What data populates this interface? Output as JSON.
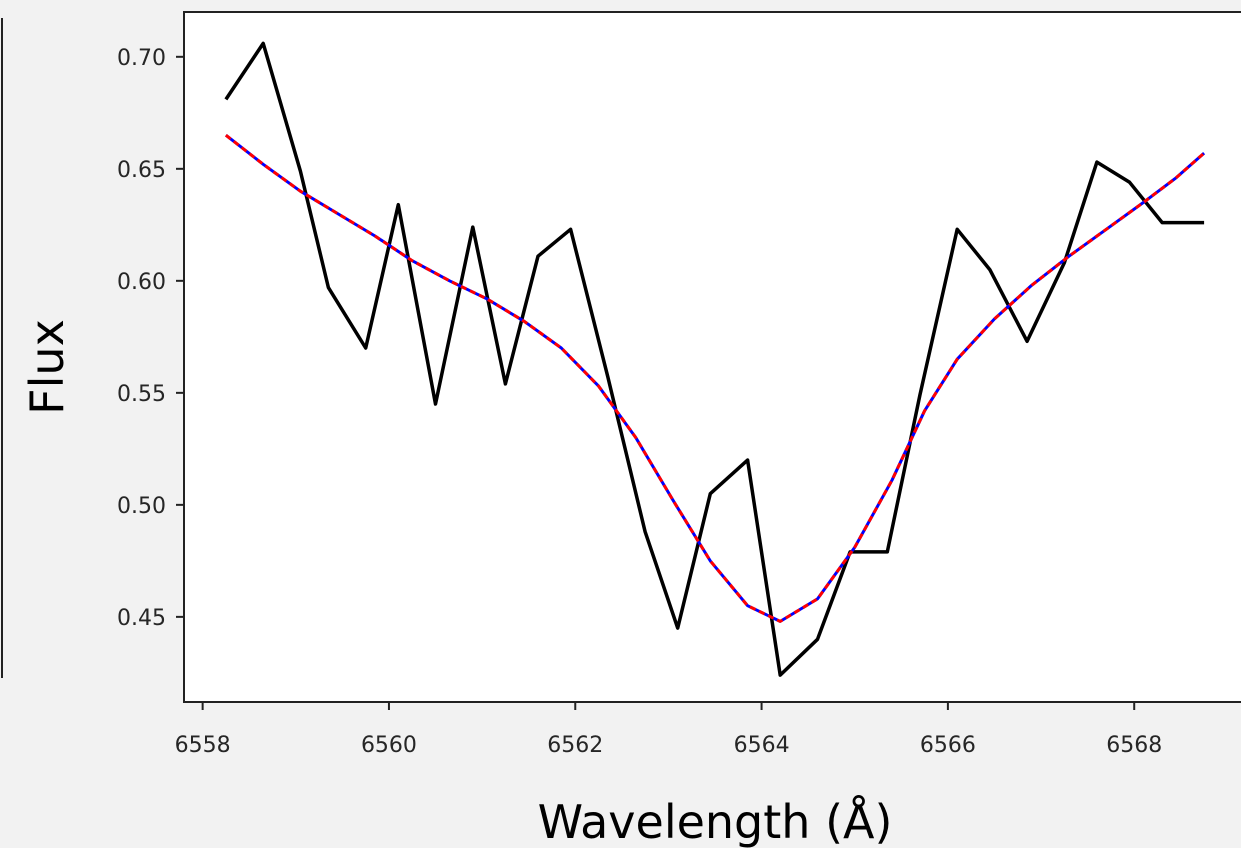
{
  "chart_data": {
    "type": "line",
    "title": "",
    "xlabel": "Wavelength (Å)",
    "ylabel": "Flux",
    "xlim": [
      6557.8,
      6569.2
    ],
    "ylim": [
      0.412,
      0.72
    ],
    "xticks": [
      6558,
      6560,
      6562,
      6564,
      6566,
      6568
    ],
    "yticks": [
      0.45,
      0.5,
      0.55,
      0.6,
      0.65,
      0.7
    ],
    "xtick_labels": [
      "6558",
      "6560",
      "6562",
      "6564",
      "6566",
      "6568"
    ],
    "ytick_labels": [
      "0.45",
      "0.50",
      "0.55",
      "0.60",
      "0.65",
      "0.70"
    ],
    "grid": false,
    "legend": "none",
    "series": [
      {
        "color": "#000000",
        "style": "solid",
        "x": [
          6558.25,
          6558.65,
          6559.05,
          6559.35,
          6559.75,
          6560.1,
          6560.5,
          6560.9,
          6561.25,
          6561.6,
          6561.95,
          6562.35,
          6562.75,
          6563.1,
          6563.45,
          6563.85,
          6564.2,
          6564.6,
          6564.95,
          6565.35,
          6565.7,
          6566.1,
          6566.45,
          6566.85,
          6567.25,
          6567.6,
          6567.95,
          6568.3,
          6568.75
        ],
        "y": [
          0.681,
          0.706,
          0.649,
          0.597,
          0.57,
          0.634,
          0.545,
          0.624,
          0.554,
          0.611,
          0.623,
          0.557,
          0.488,
          0.445,
          0.505,
          0.52,
          0.424,
          0.44,
          0.479,
          0.479,
          0.549,
          0.623,
          0.605,
          0.573,
          0.608,
          0.653,
          0.644,
          0.626,
          0.626
        ]
      },
      {
        "color": "#0000ff",
        "style": "solid",
        "x": [
          6558.25,
          6558.65,
          6559.05,
          6559.45,
          6559.85,
          6560.25,
          6560.65,
          6561.05,
          6561.45,
          6561.85,
          6562.25,
          6562.65,
          6563.05,
          6563.45,
          6563.85,
          6564.2,
          6564.6,
          6565.0,
          6565.4,
          6565.75,
          6566.1,
          6566.5,
          6566.9,
          6567.3,
          6567.7,
          6568.1,
          6568.45,
          6568.75
        ],
        "y": [
          0.665,
          0.652,
          0.64,
          0.63,
          0.62,
          0.609,
          0.6,
          0.592,
          0.582,
          0.57,
          0.553,
          0.53,
          0.502,
          0.475,
          0.455,
          0.448,
          0.458,
          0.481,
          0.511,
          0.542,
          0.565,
          0.583,
          0.598,
          0.611,
          0.623,
          0.635,
          0.646,
          0.657
        ]
      },
      {
        "color": "#ff0000",
        "style": "dashed",
        "x": [
          6558.25,
          6558.65,
          6559.05,
          6559.45,
          6559.85,
          6560.25,
          6560.65,
          6561.05,
          6561.45,
          6561.85,
          6562.25,
          6562.65,
          6563.05,
          6563.45,
          6563.85,
          6564.2,
          6564.6,
          6565.0,
          6565.4,
          6565.75,
          6566.1,
          6566.5,
          6566.9,
          6567.3,
          6567.7,
          6568.1,
          6568.45,
          6568.75
        ],
        "y": [
          0.665,
          0.652,
          0.64,
          0.63,
          0.62,
          0.609,
          0.6,
          0.592,
          0.582,
          0.57,
          0.553,
          0.53,
          0.502,
          0.475,
          0.455,
          0.448,
          0.458,
          0.481,
          0.511,
          0.542,
          0.565,
          0.583,
          0.598,
          0.611,
          0.623,
          0.635,
          0.646,
          0.657
        ]
      }
    ]
  }
}
